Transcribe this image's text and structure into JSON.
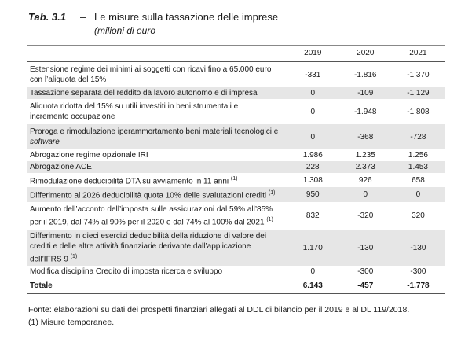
{
  "header": {
    "tab": "Tab. 3.1",
    "dash": "–",
    "title": "Le misure sulla tassazione delle imprese",
    "subtitle": "(milioni di euro"
  },
  "table": {
    "columns": [
      "2019",
      "2020",
      "2021"
    ],
    "rows": [
      {
        "desc_lines": [
          "Estensione regime dei minimi ai soggetti con ricavi fino a 65.000 euro",
          "con l’aliquota del 15%"
        ],
        "values": [
          "-331",
          "-1.816",
          "-1.370"
        ],
        "shade": false
      },
      {
        "desc_lines": [
          "Tassazione separata del reddito da lavoro autonomo e di impresa"
        ],
        "values": [
          "0",
          "-109",
          "-1.129"
        ],
        "shade": true
      },
      {
        "desc_lines": [
          "Aliquota ridotta del 15% su utili investiti in beni strumentali e",
          "incremento occupazione"
        ],
        "values": [
          "0",
          "-1.948",
          "-1.808"
        ],
        "shade": false
      },
      {
        "desc_lines": [
          "Proroga e rimodulazione iperammortamento beni materiali tecnologici e",
          "software"
        ],
        "values": [
          "0",
          "-368",
          "-728"
        ],
        "shade": true,
        "italic_last_line": true
      },
      {
        "desc_lines": [
          "Abrogazione regime opzionale IRI"
        ],
        "values": [
          "1.986",
          "1.235",
          "1.256"
        ],
        "shade": false
      },
      {
        "desc_lines": [
          "Abrogazione ACE"
        ],
        "values": [
          "228",
          "2.373",
          "1.453"
        ],
        "shade": true
      },
      {
        "desc_lines": [
          "Rimodulazione deducibilità DTA su avviamento in 11 anni"
        ],
        "sup": "(1)",
        "values": [
          "1.308",
          "926",
          "658"
        ],
        "shade": false
      },
      {
        "desc_lines": [
          "Differimento al 2026 deducibilità quota 10% delle svalutazioni crediti"
        ],
        "sup": "(1)",
        "values": [
          "950",
          "0",
          "0"
        ],
        "shade": true
      },
      {
        "desc_lines": [
          "Aumento dell’acconto dell’imposta sulle assicurazioni dal 59% all’85%",
          "per il 2019, dal 74% al 90% per il 2020 e dal 74% al 100% dal 2021"
        ],
        "sup": "(1)",
        "values": [
          "832",
          "-320",
          "320"
        ],
        "shade": false
      },
      {
        "desc_lines": [
          "Differimento in dieci esercizi deducibilità della riduzione di valore dei",
          "crediti e delle altre attività finanziarie derivante dall’applicazione",
          "dell’IFRS 9"
        ],
        "sup": "(1)",
        "values": [
          "1.170",
          "-130",
          "-130"
        ],
        "shade": true
      },
      {
        "desc_lines": [
          "Modifica disciplina Credito di imposta ricerca e sviluppo"
        ],
        "values": [
          "0",
          "-300",
          "-300"
        ],
        "shade": false
      }
    ],
    "total": {
      "label": "Totale",
      "values": [
        "6.143",
        "-457",
        "-1.778"
      ]
    }
  },
  "notes": {
    "source": "Fonte: elaborazioni su dati dei prospetti finanziari allegati al DDL di bilancio per il 2019 e al DL 119/2018.",
    "footnote": "(1) Misure temporanee."
  },
  "colors": {
    "shade": "#e6e6e6",
    "text": "#1a1a1a"
  }
}
